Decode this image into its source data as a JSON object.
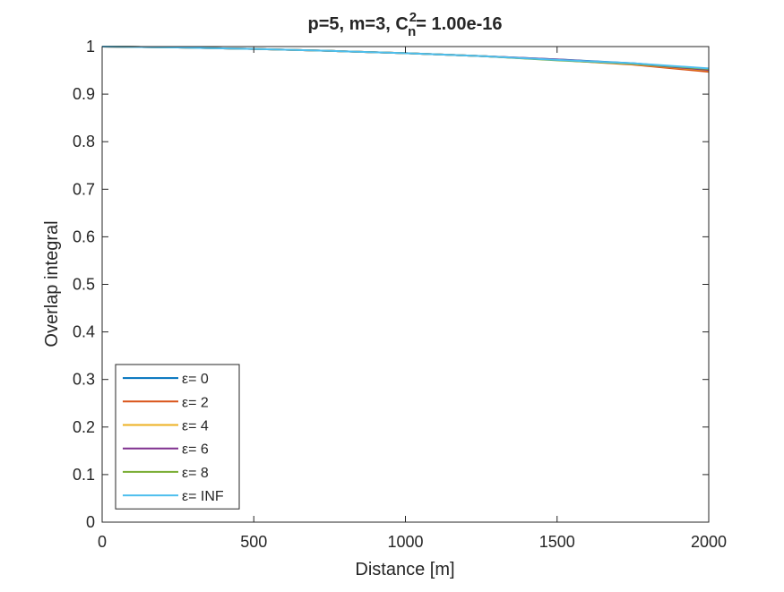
{
  "chart_data": {
    "type": "line",
    "title": {
      "prefix": "p=5, m=3, C",
      "superscript": "2",
      "subscript": "n",
      "suffix": "= 1.00e-16"
    },
    "xlabel": "Distance [m]",
    "ylabel": "Overlap integral",
    "xlim": [
      0,
      2000
    ],
    "ylim": [
      0,
      1
    ],
    "xticks": [
      0,
      500,
      1000,
      1500,
      2000
    ],
    "xtick_labels": [
      "0",
      "500",
      "1000",
      "1500",
      "2000"
    ],
    "yticks": [
      0,
      0.1,
      0.2,
      0.3,
      0.4,
      0.5,
      0.6,
      0.7,
      0.8,
      0.9,
      1
    ],
    "ytick_labels": [
      "0",
      "0.1",
      "0.2",
      "0.3",
      "0.4",
      "0.5",
      "0.6",
      "0.7",
      "0.8",
      "0.9",
      "1"
    ],
    "grid": false,
    "legend_position": "bottom-left",
    "x": [
      0,
      250,
      500,
      750,
      1000,
      1250,
      1500,
      1750,
      2000
    ],
    "series": [
      {
        "name": "0",
        "color": "#0072BD",
        "values": [
          1.0,
          0.998,
          0.995,
          0.991,
          0.986,
          0.98,
          0.973,
          0.965,
          0.952
        ]
      },
      {
        "name": "2",
        "color": "#D95319",
        "values": [
          1.0,
          0.998,
          0.995,
          0.991,
          0.986,
          0.98,
          0.972,
          0.962,
          0.947
        ]
      },
      {
        "name": "4",
        "color": "#EDB120",
        "values": [
          1.0,
          0.998,
          0.995,
          0.991,
          0.986,
          0.98,
          0.972,
          0.963,
          0.95
        ]
      },
      {
        "name": "6",
        "color": "#7E2F8E",
        "values": [
          1.0,
          0.998,
          0.995,
          0.991,
          0.986,
          0.98,
          0.973,
          0.964,
          0.951
        ]
      },
      {
        "name": "8",
        "color": "#77AC30",
        "values": [
          1.0,
          0.998,
          0.995,
          0.991,
          0.986,
          0.98,
          0.971,
          0.964,
          0.953
        ]
      },
      {
        "name": "INF",
        "color": "#4DBEEE",
        "values": [
          1.0,
          0.998,
          0.995,
          0.991,
          0.986,
          0.98,
          0.972,
          0.965,
          0.954
        ]
      }
    ],
    "legend_prefix": "ε= "
  }
}
